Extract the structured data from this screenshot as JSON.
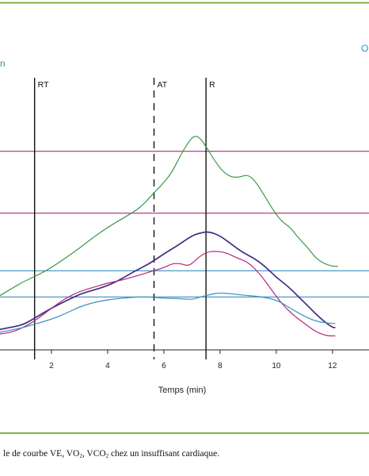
{
  "chart_data": {
    "type": "line",
    "xlabel": "Temps (min)",
    "xlim": [
      0,
      13.3
    ],
    "ylim": [
      0,
      100
    ],
    "x_ticks": [
      2,
      4,
      6,
      8,
      10,
      12
    ],
    "left_label": "n",
    "right_label": "O",
    "vertical_markers": [
      {
        "label": "RT",
        "x": 1.4,
        "style": "solid"
      },
      {
        "label": "AT",
        "x": 5.65,
        "style": "dashed"
      },
      {
        "label": "R",
        "x": 7.5,
        "style": "solid"
      }
    ],
    "reference_lines": [
      {
        "y": 71.3,
        "color": "#b0287f"
      },
      {
        "y": 49.1,
        "color": "#b0287f"
      },
      {
        "y": 28.4,
        "color": "#3a8fc0"
      },
      {
        "y": 19.0,
        "color": "#3a8fc0"
      }
    ],
    "series": [
      {
        "color": "#3a9a48",
        "x": [
          0,
          0.5,
          1,
          1.5,
          2,
          2.5,
          3,
          3.5,
          4,
          4.5,
          5,
          5.3,
          5.7,
          6,
          6.3,
          6.6,
          6.9,
          7.1,
          7.3,
          7.5,
          7.8,
          8.1,
          8.4,
          8.7,
          9,
          9.3,
          9.6,
          9.9,
          10.2,
          10.5,
          10.8,
          11.1,
          11.4,
          11.7,
          12,
          12.2
        ],
        "y": [
          18.5,
          21.5,
          24.5,
          26.8,
          29.5,
          33,
          36.5,
          40.5,
          44,
          47,
          50,
          52.5,
          57,
          60,
          64,
          70,
          75,
          77,
          76,
          73,
          68,
          64,
          62,
          62,
          63,
          60,
          55,
          50,
          46,
          44,
          40,
          37,
          33,
          31,
          30,
          30
        ]
      },
      {
        "color": "#3f2c85",
        "x": [
          0,
          0.5,
          1,
          1.5,
          2,
          2.5,
          3,
          3.5,
          4,
          4.5,
          5,
          5.5,
          6,
          6.5,
          7,
          7.3,
          7.6,
          8,
          8.4,
          8.8,
          9.2,
          9.6,
          10,
          10.4,
          10.8,
          11.2,
          11.6,
          12,
          12.1
        ],
        "y": [
          7,
          8,
          9,
          12,
          15,
          17.5,
          20,
          21.5,
          23,
          25.5,
          28.5,
          31,
          34.5,
          37.5,
          41,
          42,
          42.5,
          41,
          38,
          35,
          33,
          30,
          26,
          23,
          19,
          15,
          11,
          8,
          8
        ]
      },
      {
        "color": "#b0287f",
        "x": [
          0,
          0.5,
          1,
          1.5,
          2,
          2.5,
          3,
          3.5,
          4,
          4.5,
          5,
          5.5,
          6,
          6.3,
          6.6,
          6.9,
          7.2,
          7.5,
          7.8,
          8.2,
          8.6,
          9,
          9.4,
          9.8,
          10.2,
          10.6,
          11,
          11.4,
          11.8,
          12.1
        ],
        "y": [
          5.5,
          6,
          8,
          11,
          15,
          18.5,
          21,
          22.5,
          24,
          25,
          26.5,
          28,
          29.5,
          31,
          31,
          30,
          33,
          35,
          35.5,
          35,
          33,
          31.5,
          27.5,
          22,
          16.5,
          12.5,
          9.5,
          6.5,
          5,
          5
        ]
      },
      {
        "color": "#3a8fc0",
        "x": [
          0,
          0.5,
          1,
          1.5,
          2,
          2.5,
          3,
          3.5,
          4,
          4.5,
          5,
          5.5,
          6,
          6.5,
          7,
          7.3,
          7.7,
          8,
          8.5,
          9,
          9.5,
          10,
          10.5,
          11,
          11.5,
          12,
          12.1
        ],
        "y": [
          6,
          7,
          8,
          9.5,
          11,
          13,
          15.5,
          17,
          18,
          18.5,
          19,
          19,
          18.5,
          18.5,
          18,
          19,
          20,
          20.5,
          20,
          19.5,
          19,
          18,
          15,
          12,
          10,
          9.5,
          9.5
        ]
      }
    ]
  },
  "caption": {
    "part1": "le de courbe VE, VO",
    "sub1": "2",
    "part2": ", VCO",
    "sub2": "2",
    "part3": " chez un insuffisant cardiaque."
  },
  "frame_color": "#7cb342"
}
